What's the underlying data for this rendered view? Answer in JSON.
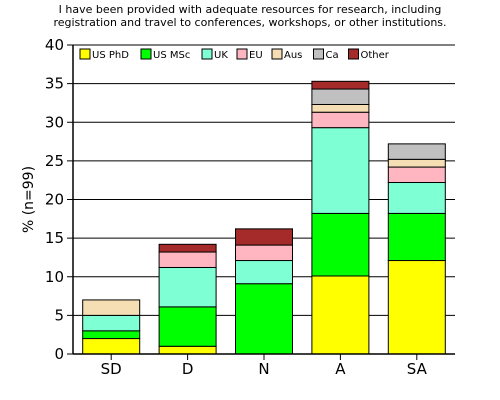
{
  "chart_data": {
    "type": "bar",
    "stacked": true,
    "title_lines": [
      "I have been provided with adequate resources for research, including",
      "registration and travel to conferences, workshops, or other institutions."
    ],
    "xlabel": "",
    "ylabel": "% (n=99)",
    "ylim": [
      0,
      40
    ],
    "yticks": [
      0,
      5,
      10,
      15,
      20,
      25,
      30,
      35,
      40
    ],
    "grid": true,
    "legend_position": "top",
    "categories": [
      "SD",
      "D",
      "N",
      "A",
      "SA"
    ],
    "series": [
      {
        "name": "US PhD",
        "color": "#ffff00",
        "values": [
          2,
          1,
          0,
          10.1,
          12.1
        ]
      },
      {
        "name": "US MSc",
        "color": "#00ff00",
        "values": [
          1,
          5.1,
          9.1,
          8.1,
          6.1
        ]
      },
      {
        "name": "UK",
        "color": "#7fffd4",
        "values": [
          2,
          5.1,
          3,
          11.1,
          4
        ]
      },
      {
        "name": "EU",
        "color": "#ffb6c1",
        "values": [
          0,
          2,
          2,
          2,
          2
        ]
      },
      {
        "name": "Aus",
        "color": "#f5deb3",
        "values": [
          2,
          0,
          0,
          1,
          1
        ]
      },
      {
        "name": "Ca",
        "color": "#c0c0c0",
        "values": [
          0,
          0,
          0,
          2,
          2
        ]
      },
      {
        "name": "Other",
        "color": "#a52a2a",
        "values": [
          0,
          1,
          2.1,
          1,
          0
        ]
      }
    ]
  }
}
